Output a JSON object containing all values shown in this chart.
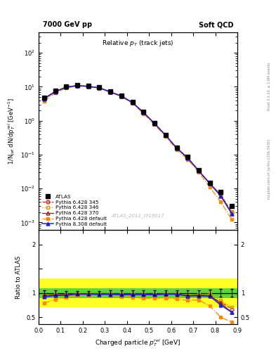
{
  "title_top_left": "7000 GeV pp",
  "title_top_right": "Soft QCD",
  "plot_title": "Relative $p_T$ (track jets)",
  "xlabel": "Charged particle $p_T^{rel}$ [GeV]",
  "ylabel_main": "1/N$_{jet}$ dN/dp$_T^{rel}$ [GeV$^{-1}$]",
  "ylabel_ratio": "Ratio to ATLAS",
  "watermark": "ATLAS_2011_I919017",
  "right_label": "Rivet 3.1.10, ≥ 1.6M events",
  "right_label2": "mcplots.cern.ch [arXiv:1306.3436]",
  "x_data": [
    0.025,
    0.075,
    0.125,
    0.175,
    0.225,
    0.275,
    0.325,
    0.375,
    0.425,
    0.475,
    0.525,
    0.575,
    0.625,
    0.675,
    0.725,
    0.775,
    0.825,
    0.875
  ],
  "atlas_y": [
    4.8,
    7.5,
    10.2,
    11.0,
    10.5,
    9.5,
    7.2,
    5.5,
    3.5,
    1.8,
    0.85,
    0.38,
    0.16,
    0.085,
    0.035,
    0.015,
    0.008,
    0.003
  ],
  "atlas_yerr": [
    0.25,
    0.35,
    0.45,
    0.45,
    0.45,
    0.42,
    0.35,
    0.28,
    0.18,
    0.09,
    0.04,
    0.018,
    0.009,
    0.004,
    0.002,
    0.001,
    0.0006,
    0.00025
  ],
  "py345_y": [
    4.52,
    7.2,
    9.82,
    10.82,
    10.3,
    9.3,
    7.0,
    5.3,
    3.4,
    1.75,
    0.82,
    0.37,
    0.155,
    0.079,
    0.033,
    0.014,
    0.0065,
    0.002
  ],
  "py346_y": [
    4.6,
    7.28,
    9.9,
    10.89,
    10.38,
    9.38,
    7.1,
    5.38,
    3.44,
    1.77,
    0.83,
    0.375,
    0.158,
    0.081,
    0.034,
    0.0148,
    0.0068,
    0.0021
  ],
  "py370_y": [
    4.56,
    7.24,
    9.86,
    10.85,
    10.34,
    9.34,
    7.05,
    5.34,
    3.42,
    1.76,
    0.825,
    0.372,
    0.157,
    0.08,
    0.0335,
    0.0142,
    0.0063,
    0.0018
  ],
  "py_def_y": [
    3.8,
    6.5,
    9.2,
    10.5,
    10.0,
    9.0,
    6.8,
    5.1,
    3.2,
    1.6,
    0.76,
    0.34,
    0.14,
    0.072,
    0.03,
    0.011,
    0.004,
    0.0012
  ],
  "py8_y": [
    4.4,
    7.1,
    9.72,
    10.72,
    10.22,
    9.22,
    7.0,
    5.3,
    3.38,
    1.74,
    0.82,
    0.37,
    0.156,
    0.08,
    0.033,
    0.014,
    0.006,
    0.0018
  ],
  "ratio_py345": [
    0.94,
    0.96,
    0.962,
    0.984,
    0.981,
    0.979,
    0.972,
    0.964,
    0.971,
    0.972,
    0.965,
    0.974,
    0.969,
    0.929,
    0.943,
    0.933,
    0.813,
    0.667
  ],
  "ratio_py346": [
    0.958,
    0.971,
    0.971,
    0.99,
    0.988,
    0.987,
    0.986,
    0.978,
    0.983,
    0.983,
    0.976,
    0.987,
    0.988,
    0.953,
    0.971,
    0.987,
    0.85,
    0.7
  ],
  "ratio_py370": [
    0.95,
    0.965,
    0.966,
    0.986,
    0.985,
    0.983,
    0.979,
    0.971,
    0.977,
    0.978,
    0.971,
    0.979,
    0.981,
    0.941,
    0.957,
    0.947,
    0.788,
    0.6
  ],
  "ratio_py_def": [
    0.792,
    0.867,
    0.902,
    0.955,
    0.952,
    0.947,
    0.944,
    0.927,
    0.914,
    0.889,
    0.894,
    0.895,
    0.875,
    0.847,
    0.857,
    0.733,
    0.5,
    0.4
  ],
  "ratio_py8": [
    0.917,
    0.947,
    0.953,
    0.975,
    0.974,
    0.97,
    0.972,
    0.964,
    0.966,
    0.967,
    0.965,
    0.974,
    0.975,
    0.941,
    0.943,
    0.933,
    0.75,
    0.6
  ],
  "color_py345": "#dd2222",
  "color_py346": "#cc9900",
  "color_py370": "#882222",
  "color_py_def": "#ff8800",
  "color_py8": "#2222cc",
  "color_atlas": "#000000",
  "ylim_main": [
    0.0006,
    400
  ],
  "ylim_ratio": [
    0.36,
    2.3
  ],
  "xlim": [
    0.0,
    0.9
  ]
}
